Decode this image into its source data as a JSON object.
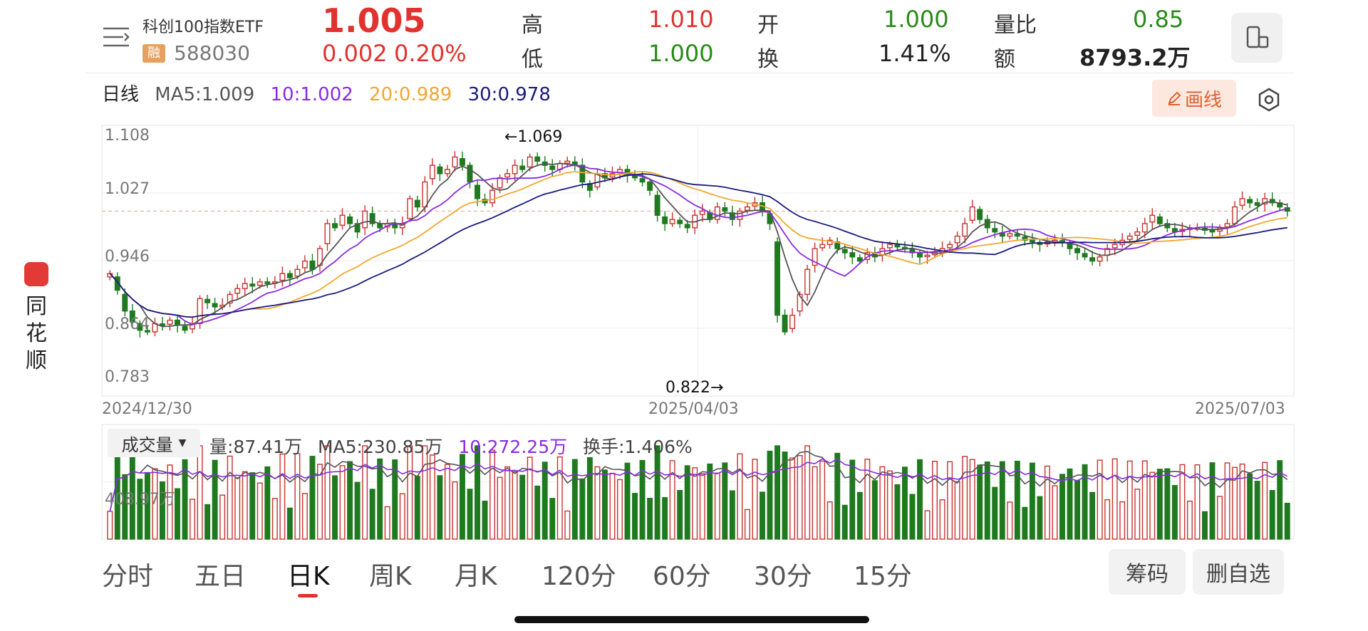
{
  "app": {
    "side_label": [
      "同",
      "花",
      "顺"
    ]
  },
  "stock": {
    "name": "科创100指数ETF",
    "badge": "融",
    "code": "588030",
    "price": "1.005",
    "change": "0.002",
    "change_pct": "0.20%"
  },
  "quote": {
    "high_label": "高",
    "high": "1.010",
    "low_label": "低",
    "low": "1.000",
    "open_label": "开",
    "open": "1.000",
    "turnover_label": "换",
    "turnover": "1.41%",
    "ratio_label": "量比",
    "ratio": "0.85",
    "amount_label": "额",
    "amount": "8793.2万"
  },
  "ma_legend": {
    "period": "日线",
    "ma5": "MA5:1.009",
    "ma10": "10:1.002",
    "ma20": "20:0.989",
    "ma30": "30:0.978"
  },
  "draw_button": "画线",
  "price_axis": [
    "1.108",
    "1.027",
    "0.946",
    "0.864",
    "0.783"
  ],
  "date_axis": [
    "2024/12/30",
    "2025/04/03",
    "2025/07/03"
  ],
  "annotations": {
    "high_mark": "←1.069",
    "low_mark": "0.822→"
  },
  "volume": {
    "selector": "成交量",
    "vol": "量:87.41万",
    "ma5": "MA5:230.85万",
    "ma10": "10:272.25万",
    "turnover": "换手:1.406%",
    "axis_label": "408.97万"
  },
  "tabs": [
    "分时",
    "五日",
    "日K",
    "周K",
    "月K",
    "120分",
    "60分",
    "30分",
    "15分"
  ],
  "active_tab": "日K",
  "right_buttons": {
    "chips": "筹码",
    "remove_fav": "删自选"
  },
  "colors": {
    "up": "#c8322e",
    "down": "#1f7a1f",
    "ma5": "#555555",
    "ma10": "#8a2be2",
    "ma20": "#f0a830",
    "ma30": "#1a1a80",
    "accent": "#e0332f"
  },
  "chart_data": {
    "type": "candlestick",
    "ylim": [
      0.783,
      1.108
    ],
    "x": [
      "2024/12/30",
      "2025/04/03",
      "2025/07/03"
    ],
    "series": [
      {
        "name": "MA5",
        "last": 1.009
      },
      {
        "name": "10",
        "last": 1.002
      },
      {
        "name": "20",
        "last": 0.989
      },
      {
        "name": "30",
        "last": 0.978
      }
    ],
    "closes": [
      0.93,
      0.91,
      0.885,
      0.872,
      0.862,
      0.86,
      0.87,
      0.868,
      0.874,
      0.868,
      0.862,
      0.87,
      0.9,
      0.895,
      0.89,
      0.892,
      0.905,
      0.912,
      0.918,
      0.915,
      0.92,
      0.918,
      0.92,
      0.93,
      0.925,
      0.935,
      0.945,
      0.935,
      0.96,
      0.99,
      0.985,
      1.0,
      0.99,
      0.98,
      1.005,
      0.99,
      0.985,
      0.99,
      0.985,
      0.99,
      1.02,
      1.01,
      1.04,
      1.06,
      1.05,
      1.055,
      1.07,
      1.06,
      1.04,
      1.02,
      1.015,
      1.03,
      1.045,
      1.05,
      1.06,
      1.055,
      1.07,
      1.065,
      1.06,
      1.055,
      1.062,
      1.065,
      1.06,
      1.04,
      1.03,
      1.05,
      1.045,
      1.05,
      1.055,
      1.048,
      1.045,
      1.04,
      1.03,
      1.0,
      0.99,
      0.995,
      0.99,
      0.985,
      1.0,
      1.005,
      0.995,
      1.01,
      1.005,
      0.995,
      1.005,
      1.01,
      1.015,
      1.005,
      0.99,
      0.88,
      0.86,
      0.88,
      0.905,
      0.935,
      0.96,
      0.965,
      0.97,
      0.96,
      0.955,
      0.95,
      0.945,
      0.955,
      0.95,
      0.96,
      0.965,
      0.962,
      0.96,
      0.955,
      0.95,
      0.952,
      0.955,
      0.96,
      0.965,
      0.975,
      0.99,
      1.01,
      0.995,
      0.985,
      0.98,
      0.975,
      0.978,
      0.975,
      0.97,
      0.968,
      0.965,
      0.968,
      0.97,
      0.968,
      0.96,
      0.955,
      0.95,
      0.945,
      0.95,
      0.96,
      0.965,
      0.97,
      0.975,
      0.98,
      0.99,
      1.0,
      0.99,
      0.985,
      0.98,
      0.983,
      0.985,
      0.985,
      0.982,
      0.98,
      0.985,
      0.99,
      1.01,
      1.02,
      1.015,
      1.012,
      1.02,
      1.015,
      1.01,
      1.005
    ]
  }
}
